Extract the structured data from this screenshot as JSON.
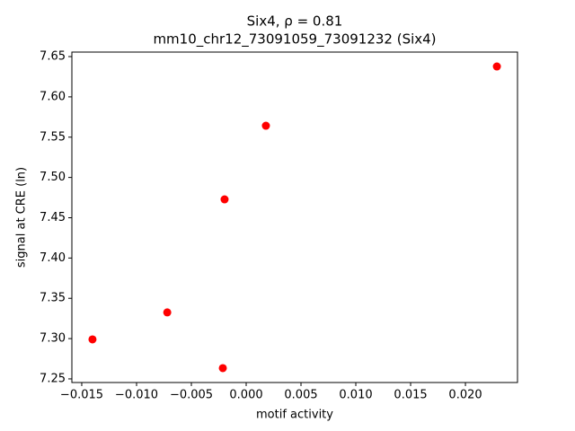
{
  "chart_data": {
    "type": "scatter",
    "title": "Six4, ρ = 0.81",
    "subtitle": "mm10_chr12_73091059_73091232 (Six4)",
    "x_label": "motif activity",
    "y_label": "signal at CRE (ln)",
    "color": "#ff0000",
    "x": [
      0.02287,
      0.0018,
      -0.00197,
      -0.0072,
      -0.01402,
      -0.00213
    ],
    "values": [
      7.6377,
      7.5642,
      7.4728,
      7.3325,
      7.299,
      7.2634
    ],
    "xlim": [
      -0.0159,
      0.02475
    ],
    "ylim": [
      7.2455,
      7.6556
    ],
    "xticks": [
      {
        "value": -0.015,
        "label": "−0.015"
      },
      {
        "value": -0.01,
        "label": "−0.010"
      },
      {
        "value": -0.005,
        "label": "−0.005"
      },
      {
        "value": 0,
        "label": "0.000"
      },
      0.005,
      {
        "value": 0.01,
        "label": "0.010"
      },
      0.015,
      {
        "value": 0.02,
        "label": "0.020"
      }
    ],
    "yticks": [
      7.25,
      {
        "value": 7.3,
        "label": "7.30"
      },
      7.35,
      {
        "value": 7.4,
        "label": "7.40"
      },
      7.45,
      {
        "value": 7.5,
        "label": "7.50"
      },
      7.55,
      {
        "value": 7.6,
        "label": "7.60"
      },
      7.65
    ]
  }
}
